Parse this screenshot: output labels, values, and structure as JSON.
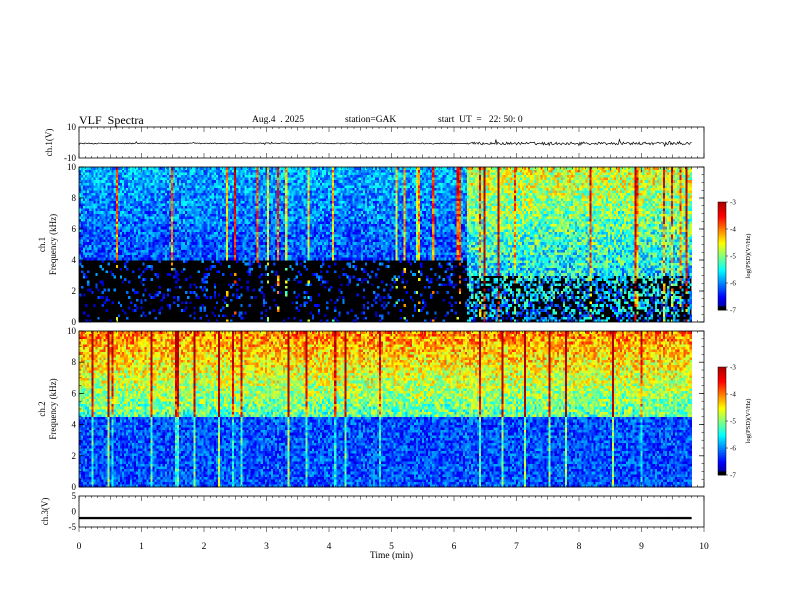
{
  "header": {
    "title": "VLF  Spectra",
    "date": "Aug.4  . 2025",
    "station": "station=GAK",
    "start": "start  UT  =   22: 50: 0"
  },
  "chart_data": [
    {
      "type": "line",
      "ylabel": "ch.1(V)",
      "ylim": [
        -10,
        10
      ],
      "ytick_labels": [
        "10",
        "-10"
      ],
      "xlim": [
        0,
        10
      ],
      "description_free": true
    },
    {
      "type": "heatmap",
      "ylabel": "ch.1\nFrequency  (kHz)",
      "ylabel_line1": "ch.1",
      "ylabel_line2": "Frequency  (kHz)",
      "ylim": [
        0,
        10
      ],
      "ytick_labels": [
        "0",
        "2",
        "4",
        "6",
        "8",
        "10"
      ],
      "xlim": [
        0,
        9.8
      ],
      "colorbar": {
        "label": "log(PSD)(V²/Hz)",
        "ticks": [
          -3,
          -4,
          -5,
          -6,
          -7
        ],
        "range": [
          -7,
          -3
        ]
      }
    },
    {
      "type": "heatmap",
      "ylabel_line1": "ch.2",
      "ylabel_line2": "Frequency  (kHz)",
      "ylim": [
        0,
        10
      ],
      "ytick_labels": [
        "0",
        "2",
        "4",
        "6",
        "8",
        "10"
      ],
      "xlim": [
        0,
        9.8
      ],
      "colorbar": {
        "label": "log(PSD)(V²/Hz)",
        "ticks": [
          -3,
          -4,
          -5,
          -6,
          -7
        ],
        "range": [
          -7,
          -3
        ]
      }
    },
    {
      "type": "line",
      "ylabel": "ch.3(V)",
      "ylim": [
        -5,
        5
      ],
      "ytick_labels": [
        "5",
        "0",
        "-5"
      ],
      "xlim": [
        0,
        10
      ]
    }
  ],
  "xaxis": {
    "label": "Time  (min)",
    "ticks": [
      "0",
      "1",
      "2",
      "3",
      "4",
      "5",
      "6",
      "7",
      "8",
      "9",
      "10"
    ]
  }
}
